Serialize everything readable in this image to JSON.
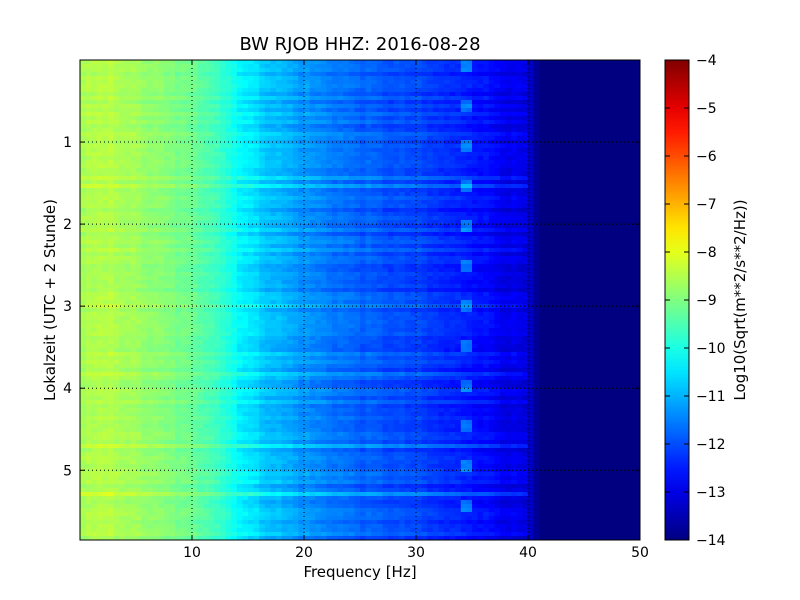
{
  "chart_data": {
    "type": "heatmap",
    "title": "BW RJOB HHZ: 2016-08-28",
    "xlabel": "Frequency [Hz]",
    "ylabel": "Lokalzeit (UTC + 2 Stunde)",
    "xlim": [
      0,
      50
    ],
    "ylim": [
      5.85,
      0
    ],
    "x_ticks": [
      10,
      20,
      30,
      40,
      50
    ],
    "x_tick_labels": [
      "10",
      "20",
      "30",
      "40",
      "50"
    ],
    "y_ticks": [
      1,
      2,
      3,
      4,
      5
    ],
    "y_tick_labels": [
      "1",
      "2",
      "3",
      "4",
      "5"
    ],
    "grid": true,
    "colormap": "jet",
    "colorbar": {
      "label": "Log10(Sqrt(m**2/s**2/Hz))",
      "range": [
        -14,
        -4
      ],
      "ticks": [
        -4,
        -5,
        -6,
        -7,
        -8,
        -9,
        -10,
        -11,
        -12,
        -13,
        -14
      ],
      "tick_labels": [
        "−4",
        "−5",
        "−6",
        "−7",
        "−8",
        "−9",
        "−10",
        "−11",
        "−12",
        "−13",
        "−14"
      ]
    },
    "spectral_profile": {
      "frequency_hz": [
        0,
        3,
        6,
        9,
        12,
        14,
        16,
        18,
        20,
        22,
        25,
        28,
        30,
        33,
        35,
        38,
        40,
        41,
        45,
        50
      ],
      "log10_amplitude": [
        -8.6,
        -8.5,
        -8.8,
        -9.1,
        -9.5,
        -10.2,
        -10.7,
        -11.0,
        -11.3,
        -11.5,
        -11.8,
        -12.0,
        -12.1,
        -12.4,
        -12.5,
        -12.9,
        -13.1,
        -14.0,
        -14.0,
        -14.0
      ]
    },
    "features": {
      "cutoff_frequency_hz": 40,
      "line_frequency_hz": 34.5
    }
  }
}
